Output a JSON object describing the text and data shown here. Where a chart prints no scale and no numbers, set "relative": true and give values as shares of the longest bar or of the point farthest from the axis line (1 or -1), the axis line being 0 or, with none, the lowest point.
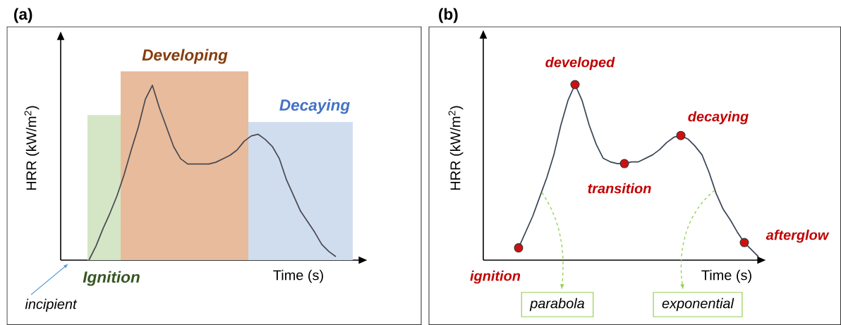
{
  "chart_data": [
    {
      "type": "line",
      "title": "(a)",
      "xlabel": "Time (s)",
      "ylabel": "HRR (kW/m$^{2}$)",
      "relative": true,
      "categories": [
        null,
        null,
        null,
        null,
        null,
        null,
        null,
        null,
        null,
        null,
        null,
        null,
        null,
        null,
        null,
        null,
        null,
        null,
        null,
        null,
        null,
        null,
        null,
        null,
        null,
        null,
        null,
        null,
        null,
        null,
        null,
        null,
        null,
        null,
        null,
        null,
        null,
        null,
        null,
        null,
        null,
        null,
        null
      ],
      "series": [
        {
          "color": "#4a4a52",
          "marker": "none",
          "values": [
            null,
            null,
            null,
            null,
            0,
            0.08,
            0.18,
            0.27,
            0.37,
            0.49,
            0.63,
            0.76,
            0.92,
            1,
            0.87,
            0.76,
            0.65,
            0.58,
            0.55,
            0.55,
            0.55,
            0.55,
            0.56,
            0.58,
            0.6,
            0.63,
            0.68,
            0.71,
            0.72,
            0.69,
            0.65,
            0.58,
            0.46,
            0.37,
            0.28,
            0.22,
            0.16,
            0.09,
            0.05,
            0.02,
            null,
            null,
            null
          ]
        }
      ],
      "annotations": [
        "Ignition",
        "Developing",
        "Decaying",
        "incipient"
      ]
    },
    {
      "type": "line",
      "title": "(b)",
      "xlabel": "Time (s)",
      "ylabel": "HRR (kW/m$^{2}$)",
      "relative": true,
      "categories": [
        null,
        null,
        null,
        null,
        null,
        null,
        null,
        null,
        null,
        null,
        null,
        null,
        null,
        null,
        null,
        null,
        null,
        null,
        null,
        null,
        null,
        null,
        null,
        null,
        null,
        null,
        null,
        null,
        null,
        null,
        null,
        null,
        null,
        null,
        null,
        null,
        null,
        null,
        null,
        null
      ],
      "series": [
        {
          "color": "#3b4656",
          "marker": "none",
          "values": [
            null,
            null,
            null,
            null,
            null,
            0.07,
            0.16,
            0.25,
            0.36,
            0.47,
            0.6,
            0.77,
            0.91,
            1,
            0.91,
            0.77,
            0.66,
            0.58,
            0.56,
            0.55,
            0.55,
            0.56,
            0.56,
            0.58,
            0.6,
            0.63,
            0.67,
            0.7,
            0.71,
            0.69,
            0.65,
            0.6,
            0.5,
            0.38,
            0.29,
            0.23,
            0.16,
            0.1,
            0.06,
            0.02
          ]
        }
      ],
      "annotations": [
        "ignition",
        "developed",
        "transition",
        "decaying",
        "afterglow",
        "parabola",
        "exponential"
      ]
    }
  ]
}
